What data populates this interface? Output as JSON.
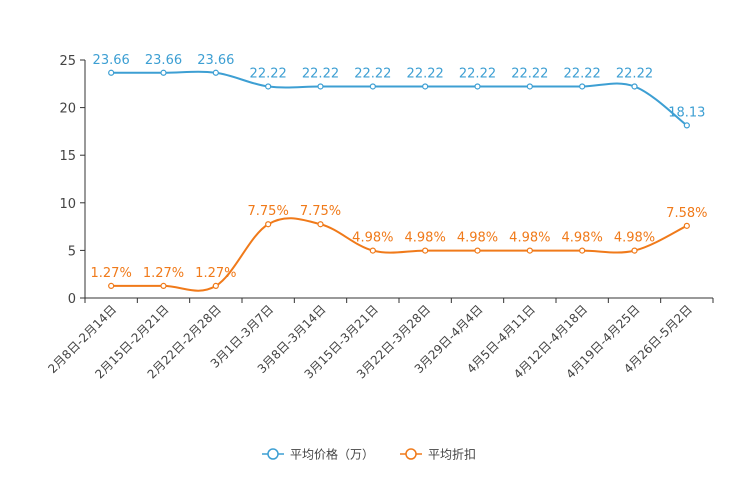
{
  "chart_data": {
    "type": "line",
    "title": "",
    "xlabel": "",
    "ylabel": "",
    "ylim": [
      0,
      25
    ],
    "yticks": [
      0,
      5,
      10,
      15,
      20,
      25
    ],
    "grid": false,
    "legend_position": "bottom-center",
    "categories": [
      "2月8日-2月14日",
      "2月15日-2月21日",
      "2月22日-2月28日",
      "3月1日-3月7日",
      "3月8日-3月14日",
      "3月15日-3月21日",
      "3月22日-3月28日",
      "3月29日-4月4日",
      "4月5日-4月11日",
      "4月12日-4月18日",
      "4月19日-4月25日",
      "4月26日-5月2日"
    ],
    "series": [
      {
        "name": "平均价格（万）",
        "color": "#3d9fd3",
        "values": [
          23.66,
          23.66,
          23.66,
          22.22,
          22.22,
          22.22,
          22.22,
          22.22,
          22.22,
          22.22,
          22.22,
          18.13
        ],
        "labels": [
          "23.66",
          "23.66",
          "23.66",
          "22.22",
          "22.22",
          "22.22",
          "22.22",
          "22.22",
          "22.22",
          "22.22",
          "22.22",
          "18.13"
        ]
      },
      {
        "name": "平均折扣",
        "color": "#f07a1a",
        "values": [
          1.27,
          1.27,
          1.27,
          7.75,
          7.75,
          4.98,
          4.98,
          4.98,
          4.98,
          4.98,
          4.98,
          7.58
        ],
        "labels": [
          "1.27%",
          "1.27%",
          "1.27%",
          "7.75%",
          "7.75%",
          "4.98%",
          "4.98%",
          "4.98%",
          "4.98%",
          "4.98%",
          "4.98%",
          "7.58%"
        ]
      }
    ]
  }
}
